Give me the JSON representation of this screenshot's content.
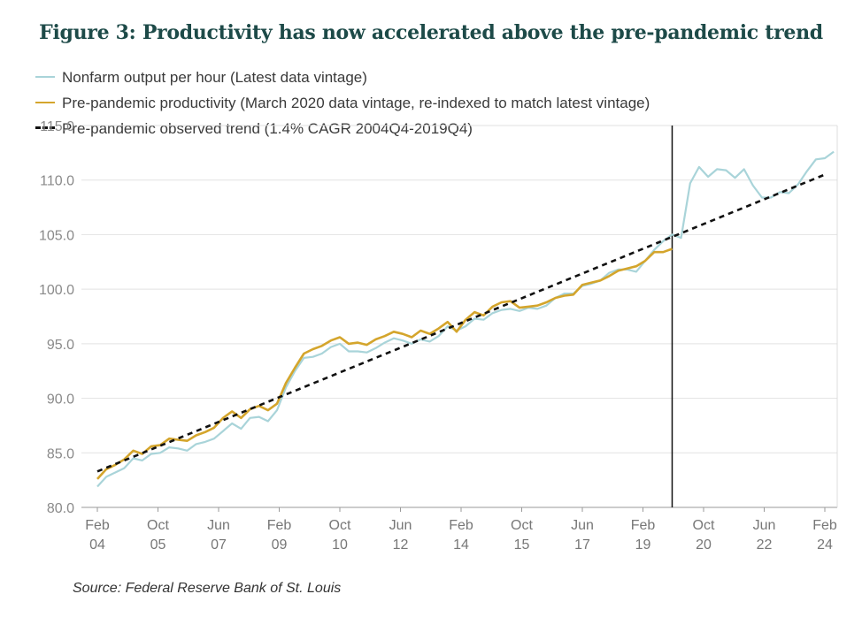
{
  "title": "Figure 3: Productivity has now accelerated above the pre-pandemic trend",
  "source": "Source: Federal Reserve Bank of St. Louis",
  "legend": {
    "nonfarm": "Nonfarm output per hour (Latest data vintage)",
    "prepandemic": "Pre-pandemic productivity (March 2020 data vintage, re-indexed to match latest vintage)",
    "trend": "Pre-pandemic observed trend (1.4% CAGR 2004Q4-2019Q4)"
  },
  "chart_data": {
    "type": "line",
    "y_ticks": [
      "80.0",
      "85.0",
      "90.0",
      "95.0",
      "100.0",
      "105.0",
      "110.0",
      "115.0"
    ],
    "ylim": [
      80,
      115
    ],
    "x_ticks": [
      {
        "top": "Feb",
        "bottom": "04"
      },
      {
        "top": "Oct",
        "bottom": "05"
      },
      {
        "top": "Jun",
        "bottom": "07"
      },
      {
        "top": "Feb",
        "bottom": "09"
      },
      {
        "top": "Oct",
        "bottom": "10"
      },
      {
        "top": "Jun",
        "bottom": "12"
      },
      {
        "top": "Feb",
        "bottom": "14"
      },
      {
        "top": "Oct",
        "bottom": "15"
      },
      {
        "top": "Jun",
        "bottom": "17"
      },
      {
        "top": "Feb",
        "bottom": "19"
      },
      {
        "top": "Oct",
        "bottom": "20"
      },
      {
        "top": "Jun",
        "bottom": "22"
      },
      {
        "top": "Feb",
        "bottom": "24"
      }
    ],
    "x_range": [
      "2004Q1",
      "2024Q2"
    ],
    "vertical_line_at": "2020Q1",
    "series": [
      {
        "name": "Nonfarm output per hour (Latest data vintage)",
        "color": "#a9d4d9",
        "start": "2004Q1",
        "values": [
          81.9,
          82.8,
          83.2,
          83.6,
          84.5,
          84.3,
          84.9,
          85.0,
          85.5,
          85.4,
          85.2,
          85.8,
          86.0,
          86.3,
          87.0,
          87.7,
          87.2,
          88.2,
          88.3,
          87.9,
          88.9,
          91.0,
          92.5,
          93.7,
          93.8,
          94.1,
          94.7,
          95.0,
          94.3,
          94.3,
          94.2,
          94.6,
          95.1,
          95.5,
          95.3,
          95.0,
          95.4,
          95.2,
          95.7,
          96.6,
          96.2,
          96.6,
          97.3,
          97.2,
          97.8,
          98.1,
          98.2,
          98.0,
          98.3,
          98.2,
          98.5,
          99.2,
          99.6,
          99.6,
          100.3,
          100.5,
          100.8,
          101.5,
          101.8,
          101.8,
          101.6,
          102.6,
          103.6,
          104.4,
          105.0,
          104.7,
          109.7,
          111.2,
          110.3,
          111.0,
          110.9,
          110.2,
          111.0,
          109.5,
          108.4,
          108.4,
          108.9,
          108.8,
          109.6,
          110.8,
          111.9,
          112.0,
          112.6
        ]
      },
      {
        "name": "Pre-pandemic productivity (March 2020 data vintage, re-indexed to match latest vintage)",
        "color": "#d4a52c",
        "start": "2004Q1",
        "values": [
          82.6,
          83.5,
          83.9,
          84.4,
          85.2,
          84.9,
          85.6,
          85.7,
          86.3,
          86.2,
          86.1,
          86.6,
          86.9,
          87.3,
          88.2,
          88.8,
          88.2,
          89.0,
          89.3,
          88.9,
          89.5,
          91.4,
          92.8,
          94.1,
          94.5,
          94.8,
          95.3,
          95.6,
          95.0,
          95.1,
          94.9,
          95.4,
          95.7,
          96.1,
          95.9,
          95.6,
          96.2,
          95.9,
          96.4,
          97.0,
          96.1,
          97.2,
          97.9,
          97.6,
          98.4,
          98.8,
          98.9,
          98.3,
          98.4,
          98.5,
          98.8,
          99.2,
          99.4,
          99.5,
          100.4,
          100.6,
          100.8,
          101.2,
          101.7,
          101.9,
          102.1,
          102.6,
          103.4,
          103.4,
          103.7
        ]
      },
      {
        "name": "Pre-pandemic observed trend (1.4% CAGR 2004Q4-2019Q4)",
        "color": "#111111",
        "dashed": true,
        "start": "2004Q1",
        "start_value": 83.3,
        "end": "2024Q2",
        "end_value": 110.5
      }
    ]
  }
}
